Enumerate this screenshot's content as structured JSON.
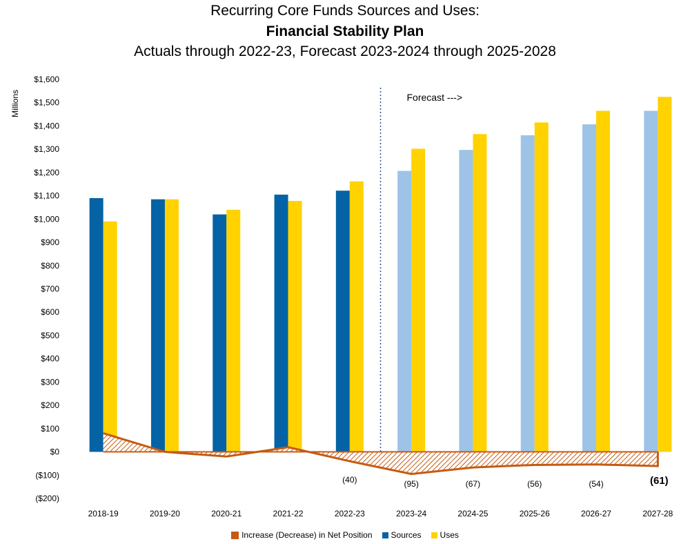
{
  "titles": {
    "line1": "Recurring Core Funds Sources and Uses:",
    "line2": "Financial Stability Plan",
    "line3": "Actuals through 2022-23, Forecast 2023-2024 through 2025-2028"
  },
  "chart_data": {
    "type": "bar",
    "title": "Recurring Core Funds Sources and Uses: Financial Stability Plan",
    "subtitle": "Actuals through 2022-23, Forecast 2023-2024 through 2025-2028",
    "ylabel": "Millions",
    "xlabel": "",
    "ylim": [
      -200,
      1600
    ],
    "yticks": [
      -200,
      -100,
      0,
      100,
      200,
      300,
      400,
      500,
      600,
      700,
      800,
      900,
      1000,
      1100,
      1200,
      1300,
      1400,
      1500,
      1600
    ],
    "ytick_labels": [
      "($200)",
      "($100)",
      "$0",
      "$100",
      "$200",
      "$300",
      "$400",
      "$500",
      "$600",
      "$700",
      "$800",
      "$900",
      "$1,000",
      "$1,100",
      "$1,200",
      "$1,300",
      "$1,400",
      "$1,500",
      "$1,600"
    ],
    "categories": [
      "2018-19",
      "2019-20",
      "2020-21",
      "2021-22",
      "2022-23",
      "2023-24",
      "2024-25",
      "2025-26",
      "2026-27",
      "2027-28"
    ],
    "forecast_start_index": 5,
    "forecast_annotation": "Forecast --->",
    "series": [
      {
        "name": "Sources",
        "type": "bar",
        "color": "#0563a5",
        "forecast_color": "#9dc3e6",
        "values": [
          1090,
          1085,
          1020,
          1105,
          1122,
          1207,
          1297,
          1360,
          1407,
          1465
        ]
      },
      {
        "name": "Uses",
        "type": "bar",
        "color": "#ffd200",
        "values": [
          990,
          1085,
          1040,
          1078,
          1162,
          1302,
          1365,
          1415,
          1465,
          1525
        ]
      },
      {
        "name": "Increase (Decrease) in Net Position",
        "type": "area",
        "color": "#c55a11",
        "values": [
          80,
          0,
          -20,
          20,
          -40,
          -95,
          -67,
          -56,
          -54,
          -61
        ],
        "data_labels": [
          "",
          "",
          "",
          "",
          "(40)",
          "(95)",
          "(67)",
          "(56)",
          "(54)",
          "(61)"
        ]
      }
    ],
    "legend_position": "bottom",
    "grid": false
  }
}
